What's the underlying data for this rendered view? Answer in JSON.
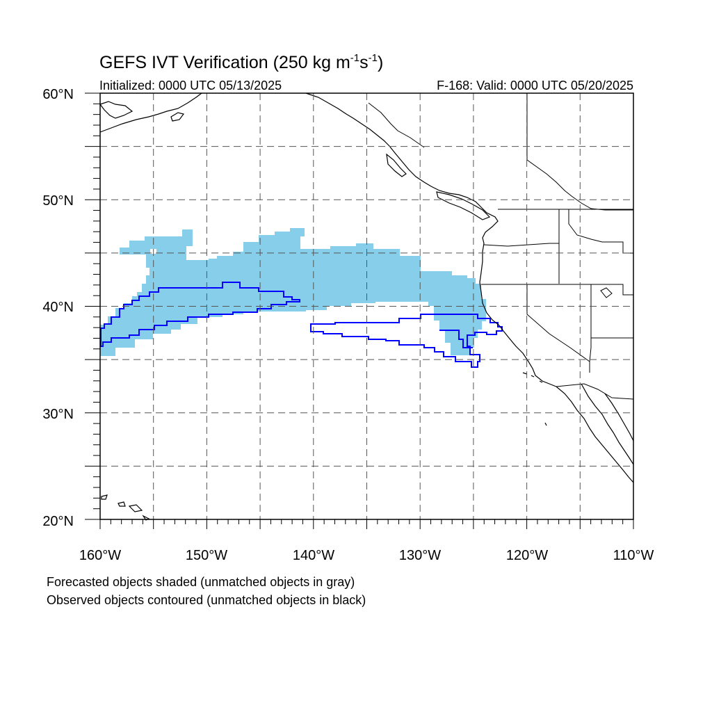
{
  "title": {
    "main": "GEFS IVT Verification (250 kg m",
    "sup1": "-1",
    "s": "s",
    "sup2": "-1",
    "close": ")"
  },
  "initialized": "Initialized: 0000 UTC 05/13/2025",
  "valid": "F-168: Valid: 0000 UTC 05/20/2025",
  "lat_labels": [
    "60°N",
    "50°N",
    "40°N",
    "30°N",
    "20°N"
  ],
  "lon_labels": [
    "160°W",
    "150°W",
    "140°W",
    "130°W",
    "120°W",
    "110°W"
  ],
  "notes": [
    "Forecasted objects shaded (unmatched objects in gray)",
    "Observed objects contoured (unmatched objects in black)"
  ],
  "map": {
    "lon_range": [
      -160,
      -110
    ],
    "lat_range": [
      20,
      60
    ],
    "grid_lons": [
      -155,
      -150,
      -145,
      -140,
      -135,
      -130,
      -125,
      -120,
      -115
    ],
    "grid_lats": [
      25,
      30,
      35,
      40,
      45,
      50,
      55
    ],
    "forecast_fill_color": "#87ceeb",
    "observed_contour_color": "#0000ff",
    "coast_color": "#000000"
  }
}
